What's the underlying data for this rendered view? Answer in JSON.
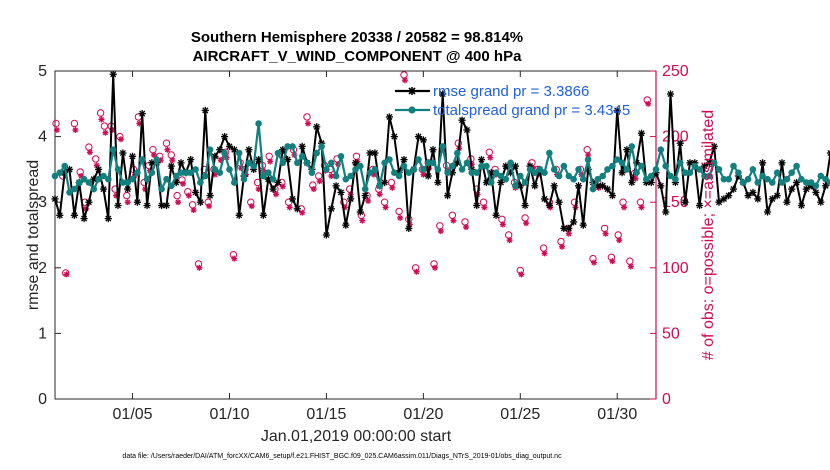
{
  "chart_data": {
    "type": "line",
    "title": "Southern Hemisphere 20338 / 20582 = 98.814%",
    "subtitle": "AIRCRAFT_V_WIND_COMPONENT @ 400 hPa",
    "xlabel": "Jan.01,2019 00:00:00 start",
    "ylabel": "rmse and totalspread",
    "ylabel_right": "# of obs: o=possible; ×=assimilated",
    "xlim": [
      1,
      32
    ],
    "ylim": [
      0,
      5
    ],
    "ylim_right": [
      0,
      250
    ],
    "x_tick_labels": [
      "01/05",
      "01/10",
      "01/15",
      "01/20",
      "01/25",
      "01/30"
    ],
    "x_tick_values": [
      5,
      10,
      15,
      20,
      25,
      30
    ],
    "y_ticks": [
      0,
      1,
      2,
      3,
      4,
      5
    ],
    "y_ticks_right": [
      0,
      50,
      100,
      150,
      200,
      250
    ],
    "legend_location": "top-right",
    "colors": {
      "rmse": "#000000",
      "totalspread": "#138080",
      "obs": "#d10a55",
      "legend_text": "#1f5fe0"
    },
    "series": [
      {
        "name": "rmse grand pr = 3.3866",
        "legend_label": "rmse grand pr = 3.3866",
        "marker": "asterisk",
        "x_start": 1.0,
        "x_step": 0.25,
        "values": [
          3.05,
          2.8,
          3.45,
          3.5,
          2.8,
          3.3,
          2.75,
          3.0,
          3.35,
          3.5,
          3.2,
          2.75,
          4.95,
          2.95,
          3.75,
          3.2,
          3.7,
          3.0,
          4.35,
          2.95,
          3.6,
          3.6,
          2.95,
          2.95,
          3.55,
          3.3,
          3.6,
          3.45,
          3.65,
          3.15,
          3.0,
          4.4,
          3.1,
          3.7,
          3.8,
          4.0,
          3.85,
          3.8,
          2.8,
          3.4,
          3.8,
          3.5,
          3.65,
          2.8,
          3.35,
          3.2,
          3.3,
          3.8,
          3.65,
          3.05,
          2.9,
          3.85,
          3.6,
          3.5,
          4.15,
          3.9,
          2.5,
          2.9,
          3.25,
          3.15,
          2.65,
          3.05,
          3.6,
          2.85,
          3.1,
          3.75,
          3.75,
          3.25,
          3.3,
          4.3,
          4.0,
          3.45,
          3.65,
          2.6,
          3.5,
          4.0,
          3.95,
          3.4,
          3.8,
          3.3,
          4.65,
          3.1,
          3.45,
          3.6,
          4.25,
          4.1,
          3.5,
          2.95,
          3.65,
          3.3,
          3.45,
          2.8,
          3.3,
          3.55,
          3.45,
          3.55,
          3.25,
          2.95,
          3.55,
          3.25,
          3.5,
          3.05,
          2.95,
          3.25,
          3.0,
          2.6,
          2.6,
          2.7,
          3.25,
          2.65,
          3.5,
          3.3,
          3.25,
          3.25,
          3.2,
          3.1,
          4.4,
          3.45,
          3.8,
          3.3,
          3.6,
          4.05,
          3.3,
          3.3,
          3.45,
          3.25,
          2.85,
          4.65,
          3.3,
          3.9,
          3.0,
          3.6,
          3.6,
          2.95,
          3.55,
          3.6,
          3.85,
          3.0,
          3.05,
          3.1,
          3.2,
          3.4,
          3.3,
          3.1,
          3.15,
          3.05,
          3.6,
          2.85,
          3.05,
          3.1,
          3.6,
          3.0,
          3.2,
          3.3,
          2.95,
          3.2,
          3.25,
          3.15,
          3.0,
          3.25,
          3.75,
          3.3,
          3.3,
          3.65,
          3.0,
          3.8,
          3.75
        ]
      },
      {
        "name": "totalspread grand pr = 3.4345",
        "legend_label": "totalspread grand pr = 3.4345",
        "marker": "filled-circle",
        "x_start": 1.0,
        "x_step": 0.25,
        "values": [
          3.4,
          3.45,
          3.55,
          3.15,
          3.2,
          3.3,
          3.35,
          3.3,
          3.2,
          3.35,
          3.4,
          3.35,
          3.8,
          3.5,
          3.3,
          3.3,
          3.35,
          3.45,
          3.65,
          3.35,
          3.45,
          3.65,
          3.2,
          3.35,
          3.25,
          3.4,
          3.45,
          3.45,
          3.45,
          3.5,
          3.3,
          3.4,
          3.8,
          3.5,
          3.45,
          3.75,
          3.5,
          3.3,
          3.75,
          3.35,
          3.6,
          3.55,
          4.2,
          3.4,
          3.45,
          3.35,
          3.75,
          3.6,
          3.85,
          3.85,
          3.6,
          3.7,
          3.6,
          3.45,
          3.75,
          3.85,
          3.5,
          3.6,
          3.4,
          3.7,
          3.35,
          3.4,
          3.5,
          3.55,
          3.2,
          3.45,
          3.5,
          3.25,
          3.6,
          3.65,
          3.45,
          3.4,
          3.55,
          3.45,
          3.5,
          3.65,
          3.5,
          3.6,
          3.6,
          3.5,
          3.85,
          3.45,
          3.55,
          3.75,
          3.5,
          3.6,
          3.45,
          3.45,
          3.55,
          3.55,
          3.3,
          3.45,
          3.4,
          3.35,
          3.6,
          3.25,
          3.4,
          3.3,
          3.5,
          3.45,
          3.5,
          3.45,
          3.75,
          3.5,
          3.4,
          3.55,
          3.4,
          3.35,
          3.5,
          3.35,
          3.65,
          3.2,
          3.35,
          3.4,
          3.5,
          3.55,
          3.65,
          3.6,
          3.5,
          3.85,
          3.45,
          3.55,
          3.35,
          3.4,
          3.5,
          3.8,
          3.55,
          3.4,
          3.35,
          3.6,
          3.45,
          3.45,
          3.55,
          3.5,
          3.4,
          3.4,
          3.6,
          3.5,
          3.35,
          3.35,
          3.55,
          3.45,
          3.3,
          3.35,
          3.5,
          3.3,
          3.4,
          3.35,
          3.3,
          3.45,
          3.3,
          3.35,
          3.45,
          3.55,
          3.35,
          3.3,
          3.3,
          3.25,
          3.4,
          3.35,
          3.3,
          3.25,
          3.45,
          3.25,
          3.2,
          3.4
        ]
      },
      {
        "name": "# of obs possible",
        "marker": "open-circle",
        "axis": "right",
        "points": [
          [
            1.05,
            210
          ],
          [
            1.4,
            170
          ],
          [
            1.55,
            96
          ],
          [
            2.0,
            210
          ],
          [
            2.3,
            173
          ],
          [
            2.55,
            150
          ],
          [
            2.75,
            192
          ],
          [
            3.1,
            183
          ],
          [
            3.35,
            218
          ],
          [
            3.55,
            208
          ],
          [
            3.9,
            208
          ],
          [
            4.1,
            160
          ],
          [
            4.35,
            200
          ],
          [
            4.7,
            155
          ],
          [
            5.05,
            175
          ],
          [
            5.3,
            215
          ],
          [
            5.6,
            165
          ],
          [
            5.85,
            178
          ],
          [
            6.05,
            190
          ],
          [
            6.4,
            185
          ],
          [
            6.75,
            195
          ],
          [
            7.0,
            186
          ],
          [
            7.3,
            155
          ],
          [
            7.55,
            167
          ],
          [
            7.85,
            158
          ],
          [
            8.1,
            148
          ],
          [
            8.4,
            103
          ],
          [
            8.7,
            175
          ],
          [
            8.9,
            150
          ],
          [
            9.2,
            175
          ],
          [
            9.5,
            186
          ],
          [
            9.8,
            188
          ],
          [
            10.2,
            110
          ],
          [
            10.55,
            180
          ],
          [
            10.8,
            175
          ],
          [
            11.1,
            150
          ],
          [
            11.45,
            165
          ],
          [
            11.7,
            178
          ],
          [
            12.05,
            185
          ],
          [
            12.35,
            160
          ],
          [
            12.7,
            165
          ],
          [
            13.05,
            150
          ],
          [
            13.3,
            190
          ],
          [
            13.7,
            145
          ],
          [
            14.0,
            215
          ],
          [
            14.3,
            163
          ],
          [
            14.6,
            170
          ],
          [
            14.9,
            178
          ],
          [
            15.2,
            175
          ],
          [
            15.55,
            183
          ],
          [
            15.9,
            150
          ],
          [
            16.2,
            160
          ],
          [
            16.55,
            185
          ],
          [
            16.8,
            140
          ],
          [
            17.1,
            155
          ],
          [
            17.4,
            175
          ],
          [
            17.7,
            160
          ],
          [
            18.0,
            150
          ],
          [
            18.35,
            165
          ],
          [
            18.75,
            143
          ],
          [
            19.0,
            247
          ],
          [
            19.25,
            137
          ],
          [
            19.6,
            100
          ],
          [
            19.95,
            175
          ],
          [
            20.25,
            180
          ],
          [
            20.55,
            103
          ],
          [
            20.85,
            132
          ],
          [
            21.2,
            178
          ],
          [
            21.5,
            140
          ],
          [
            21.8,
            195
          ],
          [
            22.15,
            135
          ],
          [
            22.45,
            183
          ],
          [
            22.75,
            160
          ],
          [
            23.1,
            150
          ],
          [
            23.4,
            188
          ],
          [
            23.7,
            175
          ],
          [
            24.05,
            137
          ],
          [
            24.4,
            125
          ],
          [
            24.7,
            165
          ],
          [
            25.0,
            98
          ],
          [
            25.25,
            138
          ],
          [
            25.6,
            180
          ],
          [
            25.9,
            175
          ],
          [
            26.2,
            115
          ],
          [
            26.5,
            150
          ],
          [
            26.85,
            175
          ],
          [
            27.1,
            120
          ],
          [
            27.45,
            130
          ],
          [
            27.8,
            150
          ],
          [
            28.1,
            175
          ],
          [
            28.45,
            190
          ],
          [
            28.75,
            107
          ],
          [
            29.0,
            165
          ],
          [
            29.35,
            130
          ],
          [
            29.7,
            108
          ],
          [
            30.05,
            125
          ],
          [
            30.3,
            150
          ],
          [
            30.65,
            105
          ],
          [
            30.9,
            172
          ],
          [
            31.2,
            150
          ],
          [
            31.55,
            228
          ]
        ]
      },
      {
        "name": "# of obs assimilated",
        "marker": "asterisk",
        "axis": "right",
        "points": [
          [
            1.1,
            205
          ],
          [
            1.45,
            172
          ],
          [
            1.6,
            95
          ],
          [
            2.05,
            205
          ],
          [
            2.35,
            170
          ],
          [
            2.6,
            145
          ],
          [
            2.8,
            188
          ],
          [
            3.15,
            178
          ],
          [
            3.4,
            213
          ],
          [
            3.6,
            203
          ],
          [
            3.95,
            205
          ],
          [
            4.15,
            155
          ],
          [
            4.4,
            198
          ],
          [
            4.75,
            150
          ],
          [
            5.1,
            170
          ],
          [
            5.35,
            210
          ],
          [
            5.65,
            160
          ],
          [
            5.9,
            174
          ],
          [
            6.1,
            186
          ],
          [
            6.45,
            182
          ],
          [
            6.8,
            190
          ],
          [
            7.05,
            182
          ],
          [
            7.35,
            150
          ],
          [
            7.6,
            164
          ],
          [
            7.9,
            155
          ],
          [
            8.15,
            144
          ],
          [
            8.45,
            100
          ],
          [
            8.75,
            170
          ],
          [
            8.95,
            147
          ],
          [
            9.25,
            171
          ],
          [
            9.55,
            182
          ],
          [
            9.85,
            184
          ],
          [
            10.25,
            107
          ],
          [
            10.6,
            176
          ],
          [
            10.85,
            171
          ],
          [
            11.15,
            147
          ],
          [
            11.5,
            160
          ],
          [
            11.75,
            174
          ],
          [
            12.1,
            181
          ],
          [
            12.4,
            156
          ],
          [
            12.75,
            162
          ],
          [
            13.1,
            146
          ],
          [
            13.35,
            186
          ],
          [
            13.75,
            142
          ],
          [
            14.05,
            210
          ],
          [
            14.35,
            160
          ],
          [
            14.65,
            166
          ],
          [
            14.95,
            174
          ],
          [
            15.25,
            170
          ],
          [
            15.6,
            179
          ],
          [
            15.95,
            146
          ],
          [
            16.25,
            156
          ],
          [
            16.6,
            181
          ],
          [
            16.85,
            136
          ],
          [
            17.15,
            151
          ],
          [
            17.45,
            171
          ],
          [
            17.75,
            156
          ],
          [
            18.05,
            146
          ],
          [
            18.4,
            161
          ],
          [
            18.8,
            138
          ],
          [
            19.05,
            243
          ],
          [
            19.3,
            133
          ],
          [
            19.65,
            97
          ],
          [
            20.0,
            171
          ],
          [
            20.3,
            176
          ],
          [
            20.6,
            100
          ],
          [
            20.9,
            128
          ],
          [
            21.25,
            174
          ],
          [
            21.55,
            136
          ],
          [
            21.85,
            191
          ],
          [
            22.2,
            131
          ],
          [
            22.5,
            179
          ],
          [
            22.8,
            156
          ],
          [
            23.15,
            146
          ],
          [
            23.45,
            184
          ],
          [
            23.75,
            171
          ],
          [
            24.1,
            133
          ],
          [
            24.45,
            121
          ],
          [
            24.75,
            161
          ],
          [
            25.05,
            95
          ],
          [
            25.3,
            134
          ],
          [
            25.65,
            176
          ],
          [
            25.95,
            171
          ],
          [
            26.25,
            111
          ],
          [
            26.55,
            146
          ],
          [
            26.9,
            171
          ],
          [
            27.15,
            116
          ],
          [
            27.5,
            126
          ],
          [
            27.85,
            146
          ],
          [
            28.15,
            171
          ],
          [
            28.5,
            186
          ],
          [
            28.8,
            104
          ],
          [
            29.05,
            161
          ],
          [
            29.4,
            126
          ],
          [
            29.75,
            105
          ],
          [
            30.1,
            121
          ],
          [
            30.35,
            146
          ],
          [
            30.7,
            101
          ],
          [
            30.95,
            168
          ],
          [
            31.25,
            146
          ],
          [
            31.6,
            225
          ]
        ]
      }
    ]
  },
  "footer": "data file: /Users/raeder/DAI/ATM_forcXX/CAM6_setup/f.e21.FHIST_BGC.f09_025.CAM6assim.011/Diags_NTrS_2019-01/obs_diag_output.nc"
}
